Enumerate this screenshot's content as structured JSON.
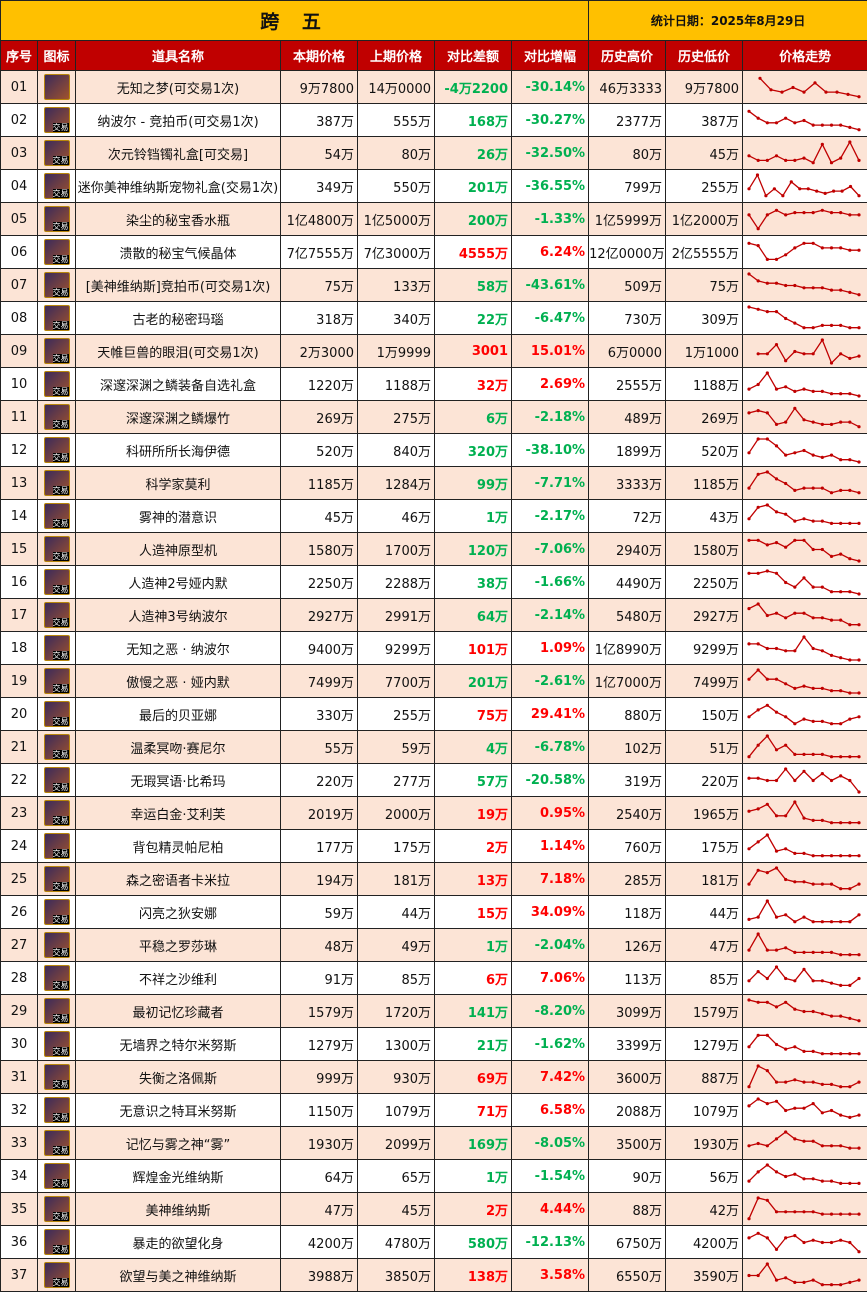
{
  "header": {
    "title": "跨 五",
    "date": "统计日期：2025年8月29日"
  },
  "columns": [
    "序号",
    "图标",
    "道具名称",
    "本期价格",
    "上期价格",
    "对比差额",
    "对比增幅",
    "历史高价",
    "历史低价",
    "价格走势"
  ],
  "icon_badge": "交易",
  "colors": {
    "header_bg": "#ffc000",
    "column_header_bg": "#c00000",
    "alt_row_bg": "#fce4d6",
    "up": "#ff0000",
    "down": "#00b050",
    "trend_line": "#c00000"
  },
  "rows": [
    {
      "no": "01",
      "name": "无知之梦(可交易1次)",
      "cur": "9万7800",
      "prev": "14万0000",
      "diff": "-4万2200",
      "pct": "-30.14%",
      "high": "46万3333",
      "low": "9万7800",
      "up": false,
      "badge": false,
      "trend": [
        null,
        9,
        4,
        3,
        5,
        3,
        7,
        3,
        3,
        2,
        1
      ]
    },
    {
      "no": "02",
      "name": "纳波尔 - 竞拍币(可交易1次)",
      "cur": "387万",
      "prev": "555万",
      "diff": "168万",
      "pct": "-30.27%",
      "high": "2377万",
      "low": "387万",
      "up": false,
      "trend": [
        9,
        6,
        4,
        4,
        6,
        4,
        5,
        3,
        3,
        3,
        3,
        2,
        1
      ]
    },
    {
      "no": "03",
      "name": "次元铃铛镯礼盒[可交易]",
      "cur": "54万",
      "prev": "80万",
      "diff": "26万",
      "pct": "-32.50%",
      "high": "80万",
      "low": "45万",
      "up": false,
      "trend": [
        4,
        2,
        2,
        4,
        2,
        2,
        3,
        1,
        9,
        1,
        3,
        10,
        2
      ]
    },
    {
      "no": "04",
      "name": "迷你美神维纳斯宠物礼盒(交易1次)",
      "cur": "349万",
      "prev": "550万",
      "diff": "201万",
      "pct": "-36.55%",
      "high": "799万",
      "low": "255万",
      "up": false,
      "trend": [
        4,
        10,
        1,
        4,
        1,
        7,
        4,
        4,
        3,
        2,
        3,
        3,
        5,
        1
      ]
    },
    {
      "no": "05",
      "name": "染尘的秘宝香水瓶",
      "cur": "1亿4800万",
      "prev": "1亿5000万",
      "diff": "200万",
      "pct": "-1.33%",
      "high": "1亿5999万",
      "low": "1亿2000万",
      "up": false,
      "trend": [
        7,
        1,
        7,
        9,
        7,
        8,
        8,
        8,
        9,
        8,
        8,
        7,
        7
      ]
    },
    {
      "no": "06",
      "name": "溃散的秘宝气候晶体",
      "cur": "7亿7555万",
      "prev": "7亿3000万",
      "diff": "4555万",
      "pct": "6.24%",
      "high": "12亿0000万",
      "low": "2亿5555万",
      "up": true,
      "trend": [
        9,
        8,
        2,
        2,
        4,
        7,
        9,
        9,
        7,
        7,
        7,
        6,
        6
      ]
    },
    {
      "no": "07",
      "name": "[美神维纳斯]竞拍币(可交易1次)",
      "cur": "75万",
      "prev": "133万",
      "diff": "58万",
      "pct": "-43.61%",
      "high": "509万",
      "low": "75万",
      "up": false,
      "trend": [
        10,
        7,
        6,
        6,
        5,
        5,
        4,
        4,
        4,
        3,
        3,
        2,
        1
      ]
    },
    {
      "no": "08",
      "name": "古老的秘密玛瑙",
      "cur": "318万",
      "prev": "340万",
      "diff": "22万",
      "pct": "-6.47%",
      "high": "730万",
      "low": "309万",
      "up": false,
      "trend": [
        10,
        9,
        8,
        8,
        5,
        3,
        1,
        1,
        2,
        2,
        2,
        1,
        1
      ]
    },
    {
      "no": "09",
      "name": "天帷巨兽的眼泪(可交易1次)",
      "cur": "2万3000",
      "prev": "1万9999",
      "diff": "3001",
      "pct": "15.01%",
      "high": "6万0000",
      "low": "1万1000",
      "up": true,
      "trend": [
        null,
        4,
        4,
        8,
        1,
        5,
        4,
        4,
        10,
        0,
        4,
        2,
        3
      ]
    },
    {
      "no": "10",
      "name": "深邃深渊之鳞装备自选礼盒",
      "cur": "1220万",
      "prev": "1188万",
      "diff": "32万",
      "pct": "2.69%",
      "high": "2555万",
      "low": "1188万",
      "up": true,
      "trend": [
        3,
        5,
        10,
        3,
        4,
        2,
        3,
        2,
        2,
        1,
        1,
        1,
        0
      ]
    },
    {
      "no": "11",
      "name": "深邃深渊之鳞爆竹",
      "cur": "269万",
      "prev": "275万",
      "diff": "6万",
      "pct": "-2.18%",
      "high": "489万",
      "low": "269万",
      "up": false,
      "trend": [
        7,
        8,
        7,
        2,
        3,
        9,
        4,
        3,
        2,
        2,
        3,
        3,
        1
      ]
    },
    {
      "no": "12",
      "name": "科研所所长海伊德",
      "cur": "520万",
      "prev": "840万",
      "diff": "320万",
      "pct": "-38.10%",
      "high": "1899万",
      "low": "520万",
      "up": false,
      "trend": [
        4,
        10,
        10,
        7,
        3,
        4,
        5,
        3,
        2,
        3,
        1,
        1,
        0
      ]
    },
    {
      "no": "13",
      "name": "科学家莫利",
      "cur": "1185万",
      "prev": "1284万",
      "diff": "99万",
      "pct": "-7.71%",
      "high": "3333万",
      "low": "1185万",
      "up": false,
      "trend": [
        3,
        9,
        10,
        7,
        5,
        2,
        3,
        3,
        3,
        1,
        2,
        2,
        1
      ]
    },
    {
      "no": "14",
      "name": "雾神的潜意识",
      "cur": "45万",
      "prev": "46万",
      "diff": "1万",
      "pct": "-2.17%",
      "high": "72万",
      "low": "43万",
      "up": false,
      "trend": [
        4,
        9,
        10,
        7,
        6,
        3,
        4,
        3,
        3,
        2,
        2,
        2,
        2
      ]
    },
    {
      "no": "15",
      "name": "人造神原型机",
      "cur": "1580万",
      "prev": "1700万",
      "diff": "120万",
      "pct": "-7.06%",
      "high": "2940万",
      "low": "1580万",
      "up": false,
      "trend": [
        9,
        9,
        7,
        8,
        6,
        9,
        9,
        5,
        5,
        2,
        3,
        1,
        0
      ]
    },
    {
      "no": "16",
      "name": "人造神2号娅内默",
      "cur": "2250万",
      "prev": "2288万",
      "diff": "38万",
      "pct": "-1.66%",
      "high": "4490万",
      "low": "2250万",
      "up": false,
      "trend": [
        9,
        9,
        10,
        9,
        5,
        3,
        7,
        3,
        3,
        1,
        1,
        1,
        0
      ]
    },
    {
      "no": "17",
      "name": "人造神3号纳波尔",
      "cur": "2927万",
      "prev": "2991万",
      "diff": "64万",
      "pct": "-2.14%",
      "high": "5480万",
      "low": "2927万",
      "up": false,
      "trend": [
        8,
        10,
        5,
        6,
        4,
        6,
        6,
        4,
        4,
        3,
        3,
        1,
        1
      ]
    },
    {
      "no": "18",
      "name": "无知之恶 · 纳波尔",
      "cur": "9400万",
      "prev": "9299万",
      "diff": "101万",
      "pct": "1.09%",
      "high": "1亿8990万",
      "low": "9299万",
      "up": true,
      "trend": [
        7,
        7,
        5,
        5,
        4,
        4,
        10,
        5,
        4,
        2,
        1,
        0,
        0
      ]
    },
    {
      "no": "19",
      "name": "傲慢之恶 · 娅内默",
      "cur": "7499万",
      "prev": "7700万",
      "diff": "201万",
      "pct": "-2.61%",
      "high": "1亿7000万",
      "low": "7499万",
      "up": false,
      "trend": [
        6,
        10,
        6,
        6,
        4,
        2,
        3,
        2,
        2,
        1,
        1,
        0,
        0
      ]
    },
    {
      "no": "20",
      "name": "最后的贝亚娜",
      "cur": "330万",
      "prev": "255万",
      "diff": "75万",
      "pct": "29.41%",
      "high": "880万",
      "low": "150万",
      "up": true,
      "trend": [
        4,
        7,
        9,
        6,
        4,
        1,
        3,
        2,
        2,
        1,
        1,
        3,
        4
      ]
    },
    {
      "no": "21",
      "name": "温柔冥吻·赛尼尔",
      "cur": "55万",
      "prev": "59万",
      "diff": "4万",
      "pct": "-6.78%",
      "high": "102万",
      "low": "51万",
      "up": false,
      "trend": [
        1,
        6,
        10,
        4,
        6,
        2,
        2,
        2,
        2,
        1,
        1,
        1,
        1
      ]
    },
    {
      "no": "22",
      "name": "无瑕冥语·比希玛",
      "cur": "220万",
      "prev": "277万",
      "diff": "57万",
      "pct": "-20.58%",
      "high": "319万",
      "low": "220万",
      "up": false,
      "trend": [
        6,
        6,
        5,
        5,
        10,
        5,
        9,
        5,
        8,
        5,
        7,
        5,
        0
      ]
    },
    {
      "no": "23",
      "name": "幸运白金·艾利芙",
      "cur": "2019万",
      "prev": "2000万",
      "diff": "19万",
      "pct": "0.95%",
      "high": "2540万",
      "low": "1965万",
      "up": true,
      "trend": [
        6,
        7,
        9,
        4,
        4,
        10,
        3,
        2,
        2,
        1,
        1,
        1,
        1
      ]
    },
    {
      "no": "24",
      "name": "背包精灵帕尼柏",
      "cur": "177万",
      "prev": "175万",
      "diff": "2万",
      "pct": "1.14%",
      "high": "760万",
      "low": "175万",
      "up": true,
      "trend": [
        4,
        7,
        10,
        3,
        4,
        2,
        2,
        1,
        1,
        1,
        1,
        1,
        1
      ]
    },
    {
      "no": "25",
      "name": "森之密语者卡米拉",
      "cur": "194万",
      "prev": "181万",
      "diff": "13万",
      "pct": "7.18%",
      "high": "285万",
      "low": "181万",
      "up": true,
      "trend": [
        3,
        9,
        8,
        10,
        5,
        4,
        4,
        3,
        3,
        3,
        1,
        1,
        3
      ]
    },
    {
      "no": "26",
      "name": "闪亮之狄安娜",
      "cur": "59万",
      "prev": "44万",
      "diff": "15万",
      "pct": "34.09%",
      "high": "118万",
      "low": "44万",
      "up": true,
      "trend": [
        2,
        3,
        10,
        3,
        4,
        1,
        3,
        1,
        1,
        1,
        1,
        1,
        4
      ]
    },
    {
      "no": "27",
      "name": "平稳之罗莎琳",
      "cur": "48万",
      "prev": "49万",
      "diff": "1万",
      "pct": "-2.04%",
      "high": "126万",
      "low": "47万",
      "up": false,
      "trend": [
        3,
        10,
        3,
        3,
        4,
        2,
        2,
        2,
        2,
        2,
        1,
        1,
        1
      ]
    },
    {
      "no": "28",
      "name": "不祥之沙维利",
      "cur": "91万",
      "prev": "85万",
      "diff": "6万",
      "pct": "7.06%",
      "high": "113万",
      "low": "85万",
      "up": true,
      "trend": [
        4,
        8,
        5,
        10,
        5,
        4,
        9,
        4,
        4,
        3,
        2,
        2,
        5
      ]
    },
    {
      "no": "29",
      "name": "最初记忆珍藏者",
      "cur": "1579万",
      "prev": "1720万",
      "diff": "141万",
      "pct": "-8.20%",
      "high": "3099万",
      "low": "1579万",
      "up": false,
      "trend": [
        10,
        9,
        9,
        7,
        9,
        6,
        5,
        5,
        4,
        3,
        3,
        2,
        1
      ]
    },
    {
      "no": "30",
      "name": "无墙界之特尔米努斯",
      "cur": "1279万",
      "prev": "1300万",
      "diff": "21万",
      "pct": "-1.62%",
      "high": "3399万",
      "low": "1279万",
      "up": false,
      "trend": [
        4,
        9,
        9,
        5,
        3,
        4,
        2,
        2,
        1,
        1,
        1,
        1,
        1
      ]
    },
    {
      "no": "31",
      "name": "失衡之洛佩斯",
      "cur": "999万",
      "prev": "930万",
      "diff": "69万",
      "pct": "7.42%",
      "high": "3600万",
      "low": "887万",
      "up": true,
      "trend": [
        1,
        10,
        8,
        3,
        3,
        4,
        3,
        3,
        2,
        2,
        1,
        1,
        3
      ]
    },
    {
      "no": "32",
      "name": "无意识之特耳米努斯",
      "cur": "1150万",
      "prev": "1079万",
      "diff": "71万",
      "pct": "6.58%",
      "high": "2088万",
      "low": "1079万",
      "up": true,
      "trend": [
        7,
        10,
        8,
        9,
        5,
        6,
        6,
        8,
        4,
        5,
        3,
        2,
        3
      ]
    },
    {
      "no": "33",
      "name": "记忆与雾之神“雾”",
      "cur": "1930万",
      "prev": "2099万",
      "diff": "169万",
      "pct": "-8.05%",
      "high": "3500万",
      "low": "1930万",
      "up": false,
      "trend": [
        4,
        5,
        4,
        7,
        10,
        7,
        6,
        6,
        4,
        4,
        4,
        3,
        3
      ]
    },
    {
      "no": "34",
      "name": "辉煌金光维纳斯",
      "cur": "64万",
      "prev": "65万",
      "diff": "1万",
      "pct": "-1.54%",
      "high": "90万",
      "low": "56万",
      "up": false,
      "trend": [
        3,
        7,
        10,
        7,
        5,
        6,
        4,
        4,
        3,
        3,
        2,
        2,
        2
      ]
    },
    {
      "no": "35",
      "name": "美神维纳斯",
      "cur": "47万",
      "prev": "45万",
      "diff": "2万",
      "pct": "4.44%",
      "high": "88万",
      "low": "42万",
      "up": true,
      "trend": [
        1,
        10,
        9,
        4,
        4,
        4,
        4,
        4,
        3,
        3,
        3,
        3,
        3
      ]
    },
    {
      "no": "36",
      "name": "暴走的欲望化身",
      "cur": "4200万",
      "prev": "4780万",
      "diff": "580万",
      "pct": "-12.13%",
      "high": "6750万",
      "low": "4200万",
      "up": false,
      "trend": [
        7,
        9,
        7,
        2,
        7,
        8,
        5,
        6,
        5,
        5,
        6,
        5,
        1
      ]
    },
    {
      "no": "37",
      "name": "欲望与美之神维纳斯",
      "cur": "3988万",
      "prev": "3850万",
      "diff": "138万",
      "pct": "3.58%",
      "high": "6550万",
      "low": "3590万",
      "up": true,
      "trend": [
        5,
        5,
        10,
        3,
        4,
        2,
        2,
        3,
        1,
        1,
        1,
        2,
        3
      ]
    }
  ]
}
